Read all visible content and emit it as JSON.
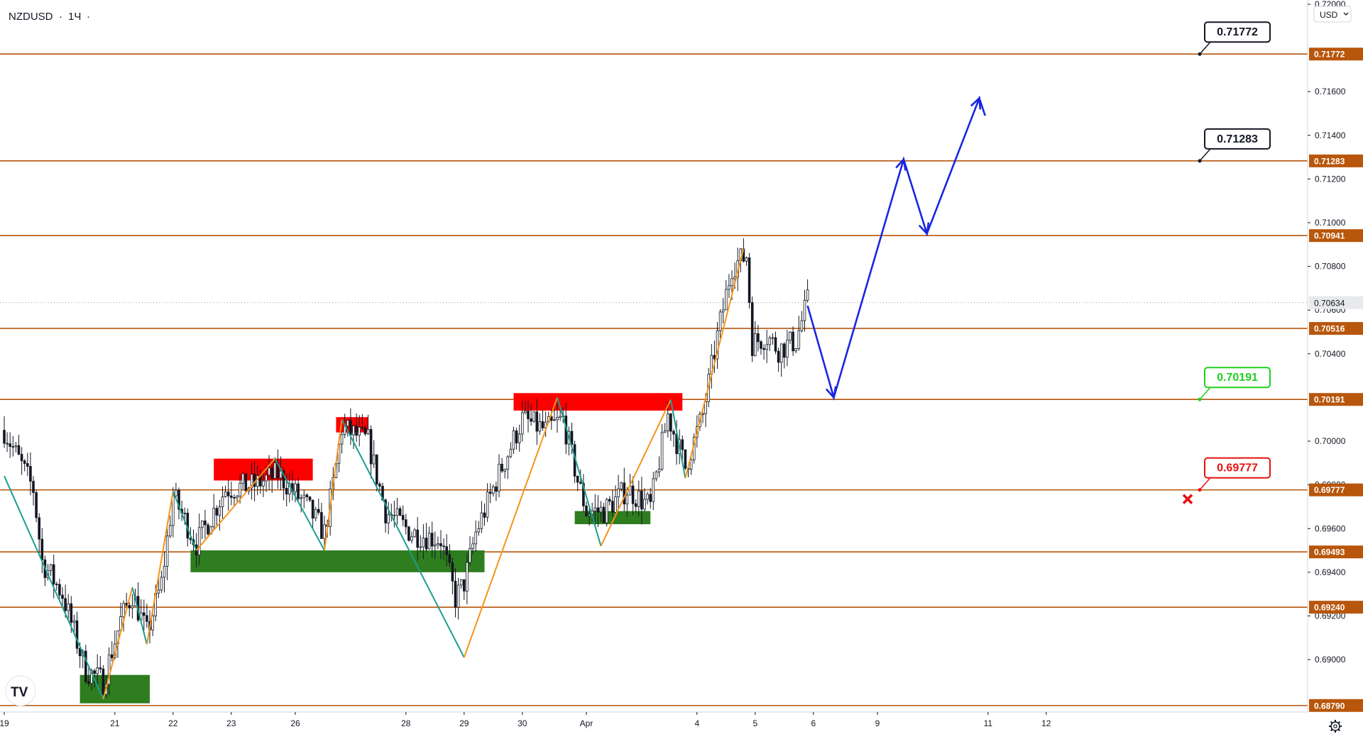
{
  "header": {
    "symbol": "NZDUSD",
    "interval": "1Ч",
    "currency_button": "USD"
  },
  "colors": {
    "bull": "#26a69a",
    "bear": "#ef5350",
    "candle_body": "#131722",
    "level": "#b8560b",
    "zig_up": "#f7931a",
    "zig_down": "#1b9e8f",
    "supply": "#ff0000",
    "demand": "#2e7d1f",
    "forecast": "#1a26e0",
    "target_green": "#20d020",
    "stop_red": "#e81010"
  },
  "icons": {
    "logo": "tradingview-logo-icon",
    "settings": "gear-icon",
    "stop": "cross-icon"
  },
  "chart_data": {
    "type": "candlestick",
    "y_range": [
      0.6876,
      0.72
    ],
    "y_ticks": [
      {
        "v": 0.72,
        "label": "0.72000"
      },
      {
        "v": 0.716,
        "label": "0.71600"
      },
      {
        "v": 0.714,
        "label": "0.71400"
      },
      {
        "v": 0.712,
        "label": "0.71200"
      },
      {
        "v": 0.71,
        "label": "0.71000"
      },
      {
        "v": 0.708,
        "label": "0.70800"
      },
      {
        "v": 0.706,
        "label": "0.70600"
      },
      {
        "v": 0.704,
        "label": "0.70400"
      },
      {
        "v": 0.7,
        "label": "0.70000"
      },
      {
        "v": 0.698,
        "label": "0.69800"
      },
      {
        "v": 0.696,
        "label": "0.69600"
      },
      {
        "v": 0.694,
        "label": "0.69400"
      },
      {
        "v": 0.692,
        "label": "0.69200"
      },
      {
        "v": 0.69,
        "label": "0.69000"
      }
    ],
    "x_ticks": [
      {
        "i": 0,
        "label": "19"
      },
      {
        "i": 38,
        "label": "21"
      },
      {
        "i": 58,
        "label": "22"
      },
      {
        "i": 78,
        "label": "23"
      },
      {
        "i": 100,
        "label": "26"
      },
      {
        "i": 138,
        "label": "28"
      },
      {
        "i": 158,
        "label": "29"
      },
      {
        "i": 178,
        "label": "30"
      },
      {
        "i": 200,
        "label": "Apr"
      },
      {
        "i": 238,
        "label": "4"
      },
      {
        "i": 258,
        "label": "5"
      },
      {
        "i": 278,
        "label": "6"
      },
      {
        "i": 300,
        "label": "9"
      },
      {
        "i": 338,
        "label": "11"
      },
      {
        "i": 358,
        "label": "12"
      }
    ],
    "last_price": {
      "value": 0.70634,
      "label": "0.70634"
    },
    "levels": [
      {
        "value": 0.71772,
        "label": "0.71772"
      },
      {
        "value": 0.71283,
        "label": "0.71283"
      },
      {
        "value": 0.70941,
        "label": "0.70941"
      },
      {
        "value": 0.70516,
        "label": "0.70516"
      },
      {
        "value": 0.70191,
        "label": "0.70191"
      },
      {
        "value": 0.69777,
        "label": "0.69777"
      },
      {
        "value": 0.69493,
        "label": "0.69493"
      },
      {
        "value": 0.6924,
        "label": "0.69240"
      },
      {
        "value": 0.6879,
        "label": "0.68790"
      }
    ],
    "zones": [
      {
        "kind": "supply",
        "i1": 72,
        "i2": 106,
        "y1": 0.6982,
        "y2": 0.6992
      },
      {
        "kind": "supply",
        "i1": 114,
        "i2": 125,
        "y1": 0.7004,
        "y2": 0.7011
      },
      {
        "kind": "supply",
        "i1": 175,
        "i2": 233,
        "y1": 0.7014,
        "y2": 0.7022
      },
      {
        "kind": "demand",
        "i1": 26,
        "i2": 50,
        "y1": 0.688,
        "y2": 0.6893
      },
      {
        "kind": "demand",
        "i1": 64,
        "i2": 165,
        "y1": 0.694,
        "y2": 0.695
      },
      {
        "kind": "demand",
        "i1": 196,
        "i2": 222,
        "y1": 0.6962,
        "y2": 0.6968
      }
    ],
    "zigzag": [
      {
        "i": 0,
        "v": 0.6984
      },
      {
        "i": 34,
        "v": 0.6882
      },
      {
        "i": 44,
        "v": 0.6933
      },
      {
        "i": 49,
        "v": 0.6907
      },
      {
        "i": 58,
        "v": 0.6977
      },
      {
        "i": 66,
        "v": 0.695
      },
      {
        "i": 93,
        "v": 0.6992
      },
      {
        "i": 110,
        "v": 0.695
      },
      {
        "i": 116,
        "v": 0.701
      },
      {
        "i": 158,
        "v": 0.6901
      },
      {
        "i": 190,
        "v": 0.702
      },
      {
        "i": 205,
        "v": 0.6952
      },
      {
        "i": 229,
        "v": 0.7019
      },
      {
        "i": 234,
        "v": 0.6983
      },
      {
        "i": 254,
        "v": 0.7088
      }
    ],
    "candles_shape": [
      {
        "i": 0,
        "v": 0.7005
      },
      {
        "i": 10,
        "v": 0.6978
      },
      {
        "i": 13,
        "v": 0.6945
      },
      {
        "i": 20,
        "v": 0.693
      },
      {
        "i": 28,
        "v": 0.6895
      },
      {
        "i": 34,
        "v": 0.689
      },
      {
        "i": 40,
        "v": 0.6918
      },
      {
        "i": 44,
        "v": 0.693
      },
      {
        "i": 49,
        "v": 0.6912
      },
      {
        "i": 54,
        "v": 0.6935
      },
      {
        "i": 58,
        "v": 0.6975
      },
      {
        "i": 66,
        "v": 0.6953
      },
      {
        "i": 76,
        "v": 0.6978
      },
      {
        "i": 86,
        "v": 0.698
      },
      {
        "i": 94,
        "v": 0.6985
      },
      {
        "i": 104,
        "v": 0.697
      },
      {
        "i": 110,
        "v": 0.6958
      },
      {
        "i": 113,
        "v": 0.698
      },
      {
        "i": 116,
        "v": 0.7006
      },
      {
        "i": 125,
        "v": 0.7
      },
      {
        "i": 131,
        "v": 0.6968
      },
      {
        "i": 140,
        "v": 0.6958
      },
      {
        "i": 150,
        "v": 0.6955
      },
      {
        "i": 155,
        "v": 0.6928
      },
      {
        "i": 158,
        "v": 0.6935
      },
      {
        "i": 162,
        "v": 0.6958
      },
      {
        "i": 170,
        "v": 0.6985
      },
      {
        "i": 178,
        "v": 0.701
      },
      {
        "i": 186,
        "v": 0.7005
      },
      {
        "i": 192,
        "v": 0.701
      },
      {
        "i": 197,
        "v": 0.6982
      },
      {
        "i": 200,
        "v": 0.6968
      },
      {
        "i": 206,
        "v": 0.6968
      },
      {
        "i": 214,
        "v": 0.6978
      },
      {
        "i": 222,
        "v": 0.697
      },
      {
        "i": 228,
        "v": 0.7012
      },
      {
        "i": 234,
        "v": 0.6988
      },
      {
        "i": 240,
        "v": 0.7012
      },
      {
        "i": 245,
        "v": 0.7048
      },
      {
        "i": 250,
        "v": 0.708
      },
      {
        "i": 255,
        "v": 0.7085
      },
      {
        "i": 257,
        "v": 0.7045
      },
      {
        "i": 262,
        "v": 0.7048
      },
      {
        "i": 266,
        "v": 0.7042
      },
      {
        "i": 272,
        "v": 0.7046
      },
      {
        "i": 276,
        "v": 0.7064
      }
    ],
    "forecast": [
      {
        "i": 276,
        "v": 0.7062
      },
      {
        "i": 285,
        "v": 0.702
      },
      {
        "i": 309,
        "v": 0.7129
      },
      {
        "i": 317,
        "v": 0.7095
      },
      {
        "i": 335,
        "v": 0.7157
      },
      {
        "i": 337,
        "v": 0.7149
      }
    ],
    "callouts": [
      {
        "label": "0.71772",
        "value": 0.71772,
        "style": "black"
      },
      {
        "label": "0.71283",
        "value": 0.71283,
        "style": "black"
      },
      {
        "label": "0.70191",
        "value": 0.70191,
        "style": "green"
      },
      {
        "label": "0.69777",
        "value": 0.69777,
        "style": "red"
      }
    ]
  }
}
